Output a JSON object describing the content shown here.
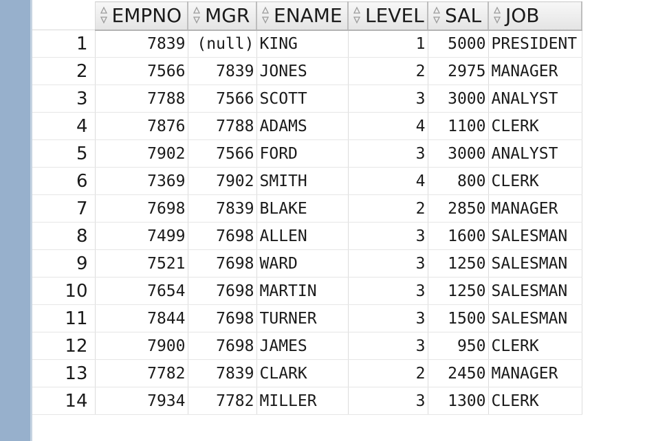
{
  "columns": [
    "EMPNO",
    "MGR",
    "ENAME",
    "LEVEL",
    "SAL",
    "JOB"
  ],
  "rows": [
    {
      "n": "1",
      "empno": "7839",
      "mgr": "(null)",
      "ename": "KING",
      "level": "1",
      "sal": "5000",
      "job": "PRESIDENT"
    },
    {
      "n": "2",
      "empno": "7566",
      "mgr": "7839",
      "ename": "JONES",
      "level": "2",
      "sal": "2975",
      "job": "MANAGER"
    },
    {
      "n": "3",
      "empno": "7788",
      "mgr": "7566",
      "ename": "SCOTT",
      "level": "3",
      "sal": "3000",
      "job": "ANALYST"
    },
    {
      "n": "4",
      "empno": "7876",
      "mgr": "7788",
      "ename": "ADAMS",
      "level": "4",
      "sal": "1100",
      "job": "CLERK"
    },
    {
      "n": "5",
      "empno": "7902",
      "mgr": "7566",
      "ename": "FORD",
      "level": "3",
      "sal": "3000",
      "job": "ANALYST"
    },
    {
      "n": "6",
      "empno": "7369",
      "mgr": "7902",
      "ename": "SMITH",
      "level": "4",
      "sal": "800",
      "job": "CLERK"
    },
    {
      "n": "7",
      "empno": "7698",
      "mgr": "7839",
      "ename": "BLAKE",
      "level": "2",
      "sal": "2850",
      "job": "MANAGER"
    },
    {
      "n": "8",
      "empno": "7499",
      "mgr": "7698",
      "ename": "ALLEN",
      "level": "3",
      "sal": "1600",
      "job": "SALESMAN"
    },
    {
      "n": "9",
      "empno": "7521",
      "mgr": "7698",
      "ename": "WARD",
      "level": "3",
      "sal": "1250",
      "job": "SALESMAN"
    },
    {
      "n": "10",
      "empno": "7654",
      "mgr": "7698",
      "ename": "MARTIN",
      "level": "3",
      "sal": "1250",
      "job": "SALESMAN"
    },
    {
      "n": "11",
      "empno": "7844",
      "mgr": "7698",
      "ename": "TURNER",
      "level": "3",
      "sal": "1500",
      "job": "SALESMAN"
    },
    {
      "n": "12",
      "empno": "7900",
      "mgr": "7698",
      "ename": "JAMES",
      "level": "3",
      "sal": "950",
      "job": "CLERK"
    },
    {
      "n": "13",
      "empno": "7782",
      "mgr": "7839",
      "ename": "CLARK",
      "level": "2",
      "sal": "2450",
      "job": "MANAGER"
    },
    {
      "n": "14",
      "empno": "7934",
      "mgr": "7782",
      "ename": "MILLER",
      "level": "3",
      "sal": "1300",
      "job": "CLERK"
    }
  ],
  "icons": {
    "sort": "sort-arrows-icon"
  },
  "colors": {
    "left_strip": "#97b0cc",
    "header_bg": "#e8e8e8",
    "grid_line": "#dcdcdc"
  }
}
